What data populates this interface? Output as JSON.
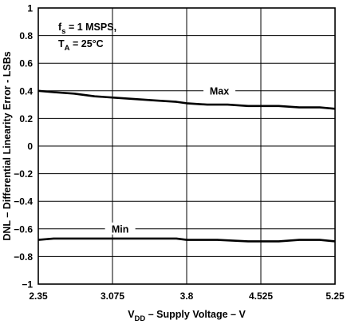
{
  "chart_data": {
    "type": "line",
    "xlabel": "V",
    "xlabel_sub": "DD",
    "xlabel_rest": " – Supply Voltage – V",
    "ylabel": "DNL – Differential Linearity Error - LSBs",
    "xlim": [
      2.35,
      5.25
    ],
    "ylim": [
      -1,
      1
    ],
    "x_ticks": [
      2.35,
      3.075,
      3.8,
      4.525,
      5.25
    ],
    "x_tick_labels": [
      "2.35",
      "3.075",
      "3.8",
      "4.525",
      "5.25"
    ],
    "y_ticks": [
      -1,
      -0.8,
      -0.6,
      -0.4,
      -0.2,
      0,
      0.2,
      0.4,
      0.6,
      0.8,
      1
    ],
    "y_tick_labels": [
      "−1",
      "−0.8",
      "−0.6",
      "−0.4",
      "−0.2",
      "0",
      "0.2",
      "0.4",
      "0.6",
      "0.8",
      "1"
    ],
    "grid": true,
    "conditions": {
      "line1_main": "f",
      "line1_sub": "s",
      "line1_rest": " = 1 MSPS,",
      "line2_main": "T",
      "line2_sub": "A",
      "line2_rest": " = 25°C"
    },
    "series": [
      {
        "name": "Max",
        "x": [
          2.35,
          2.5,
          2.7,
          2.9,
          3.1,
          3.3,
          3.5,
          3.7,
          3.8,
          4.0,
          4.2,
          4.4,
          4.525,
          4.7,
          4.9,
          5.1,
          5.25
        ],
        "values": [
          0.4,
          0.39,
          0.38,
          0.36,
          0.35,
          0.34,
          0.33,
          0.32,
          0.31,
          0.3,
          0.3,
          0.29,
          0.29,
          0.29,
          0.28,
          0.28,
          0.27
        ]
      },
      {
        "name": "Min",
        "x": [
          2.35,
          2.5,
          2.8,
          3.1,
          3.4,
          3.7,
          3.8,
          4.1,
          4.4,
          4.7,
          4.9,
          5.1,
          5.25
        ],
        "values": [
          -0.68,
          -0.67,
          -0.67,
          -0.67,
          -0.67,
          -0.67,
          -0.68,
          -0.68,
          -0.69,
          -0.69,
          -0.68,
          -0.68,
          -0.69
        ]
      }
    ],
    "labels": {
      "max": "Max",
      "min": "Min"
    }
  }
}
